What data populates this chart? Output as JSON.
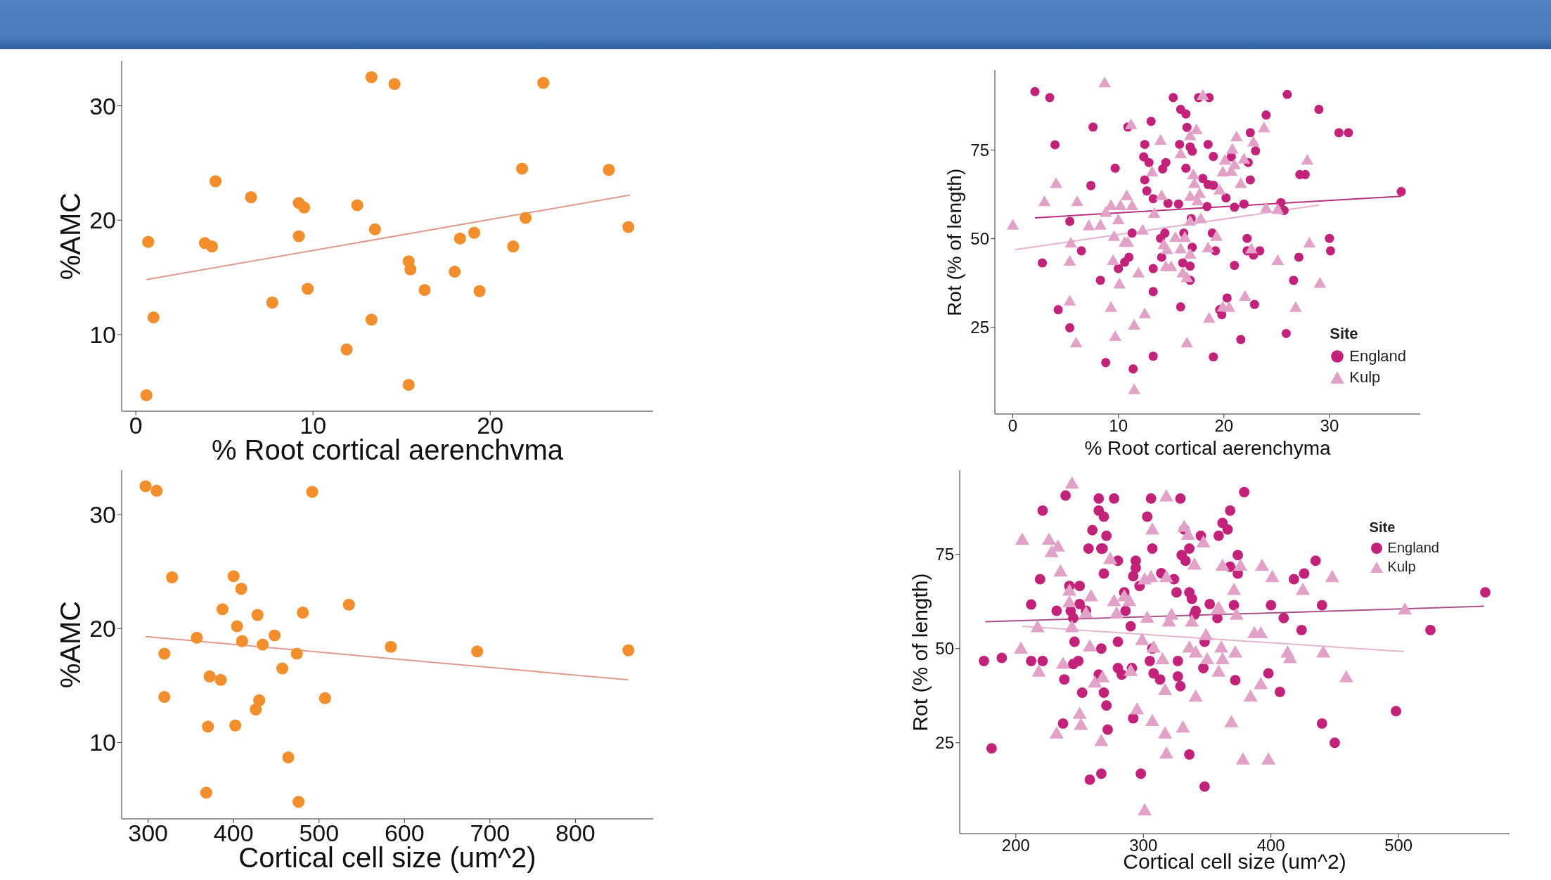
{
  "chart_data": [
    {
      "type": "scatter",
      "xlabel": "% Root cortical aerenchvma",
      "ylabel": "%AMC",
      "xlim": [
        -0.8,
        29.2
      ],
      "xticks": [
        0,
        10,
        20
      ],
      "ylim": [
        3.3,
        33.9
      ],
      "yticks": [
        10,
        20,
        30
      ],
      "series": [
        {
          "color": "#f28e2b",
          "marker": "circle",
          "x": [
            0.6,
            0.7,
            1.0,
            3.9,
            4.3,
            4.5,
            6.5,
            7.7,
            9.2,
            9.5,
            9.2,
            9.7,
            11.9,
            12.5,
            13.3,
            13.3,
            13.5,
            14.6,
            15.4,
            15.5,
            15.4,
            16.3,
            18.0,
            18.3,
            19.1,
            19.4,
            21.3,
            21.8,
            22.0,
            23.0,
            26.7,
            27.8
          ],
          "values": [
            4.7,
            18.1,
            11.5,
            18.0,
            17.7,
            23.4,
            22.0,
            12.8,
            21.5,
            21.1,
            18.6,
            14.0,
            8.7,
            21.3,
            32.5,
            11.3,
            19.2,
            31.9,
            16.4,
            15.7,
            5.6,
            13.9,
            15.5,
            18.4,
            18.9,
            13.8,
            17.7,
            24.5,
            20.2,
            32.0,
            24.4,
            19.4
          ]
        },
        {
          "type": "line",
          "color": "#df9a8c",
          "x": [
            0.6,
            27.9
          ],
          "values": [
            14.8,
            22.2
          ]
        }
      ]
    },
    {
      "type": "scatter",
      "xlabel": "% Root cortical aerenchyma",
      "ylabel": "Rot (% of length)",
      "legend_title": "Site",
      "legend": "bottom right",
      "xlim": [
        -1.7,
        38.6
      ],
      "xticks": [
        0,
        10,
        20,
        30
      ],
      "ylim": [
        0.6,
        97.5
      ],
      "yticks": [
        25,
        50,
        75
      ],
      "series": [
        {
          "name": "England",
          "color": "#c2227a",
          "marker": "circle",
          "x": [
            2.1,
            3.5,
            4.0,
            2.8,
            4.3,
            5.4,
            5.4,
            6.5,
            7.4,
            7.6,
            8.3,
            8.8,
            9.7,
            10.0,
            10.6,
            11.0,
            10.9,
            11.3,
            11.4,
            12.4,
            12.5,
            12.5,
            12.7,
            12.9,
            13.1,
            13.3,
            13.3,
            13.3,
            13.3,
            14.0,
            14.1,
            14.2,
            14.5,
            14.4,
            14.7,
            15.2,
            15.7,
            15.8,
            15.9,
            15.9,
            16.1,
            16.2,
            16.4,
            16.4,
            16.5,
            16.8,
            16.8,
            17.0,
            16.9,
            17.0,
            16.8,
            17.6,
            18.0,
            18.4,
            18.5,
            18.5,
            18.6,
            18.9,
            19.0,
            19.0,
            19.2,
            19.0,
            19.6,
            19.8,
            20.3,
            20.2,
            20.7,
            21.0,
            21.0,
            21.6,
            21.9,
            22.2,
            22.2,
            22.3,
            22.5,
            22.5,
            22.8,
            23.0,
            22.9,
            23.4,
            24.0,
            25.4,
            25.7,
            26.0,
            25.9,
            26.6,
            27.1,
            27.2,
            27.7,
            29.0,
            30.0,
            30.1,
            30.9,
            31.8,
            36.8
          ],
          "values": [
            91.5,
            89.8,
            76.5,
            43.2,
            30.0,
            24.9,
            54.9,
            46.6,
            65.0,
            81.5,
            38.3,
            15.1,
            69.9,
            41.6,
            43.4,
            44.8,
            81.5,
            51.6,
            13.3,
            73.1,
            76.6,
            66.6,
            63.5,
            71.5,
            83.1,
            61.3,
            35.1,
            16.9,
            41.6,
            50.1,
            44.8,
            69.7,
            71.5,
            51.6,
            60.0,
            89.8,
            59.8,
            76.6,
            86.5,
            30.8,
            43.2,
            51.6,
            85.2,
            69.9,
            81.4,
            42.3,
            75.9,
            74.7,
            55.7,
            47.6,
            38.3,
            89.8,
            67.0,
            59.1,
            76.6,
            65.3,
            89.8,
            51.6,
            65.1,
            73.2,
            46.6,
            16.7,
            30.0,
            28.6,
            33.3,
            61.5,
            73.1,
            58.9,
            42.5,
            21.6,
            59.8,
            46.6,
            50.1,
            71.5,
            66.6,
            79.9,
            45.4,
            74.8,
            31.5,
            46.6,
            84.9,
            60.2,
            58.0,
            90.7,
            23.3,
            38.3,
            44.8,
            68.1,
            68.1,
            86.5,
            50.1,
            46.6,
            79.9,
            79.9,
            63.3
          ]
        },
        {
          "name": "Kulp",
          "color": "#e2a2c8",
          "marker": "triangle",
          "x": [
            0.0,
            3.0,
            4.1,
            5.5,
            5.4,
            5.4,
            6.0,
            6.1,
            7.2,
            8.3,
            8.7,
            8.8,
            9.3,
            9.3,
            9.5,
            9.6,
            9.7,
            10.0,
            10.1,
            10.2,
            10.6,
            10.8,
            10.9,
            11.2,
            11.3,
            11.5,
            11.5,
            11.9,
            12.3,
            12.5,
            13.2,
            13.4,
            14.0,
            14.1,
            14.3,
            14.5,
            14.6,
            15.0,
            15.4,
            15.9,
            15.9,
            16.1,
            16.3,
            16.5,
            16.5,
            16.8,
            16.8,
            16.8,
            16.8,
            17.1,
            17.2,
            17.4,
            17.5,
            17.7,
            17.8,
            18.0,
            18.5,
            18.6,
            19.3,
            19.6,
            19.9,
            19.9,
            20.1,
            20.5,
            20.7,
            20.8,
            21.0,
            21.2,
            21.6,
            21.9,
            22.0,
            22.6,
            22.8,
            23.8,
            24.0,
            25.1,
            25.1,
            26.8,
            27.9,
            28.1,
            29.1
          ],
          "values": [
            53.6,
            60.2,
            65.3,
            48.5,
            43.4,
            32.2,
            20.4,
            60.2,
            53.4,
            53.6,
            93.7,
            57.2,
            59.1,
            30.4,
            43.6,
            50.4,
            22.2,
            55.1,
            37.0,
            59.1,
            48.7,
            61.9,
            48.7,
            81.9,
            59.1,
            25.4,
            7.2,
            40.1,
            52.2,
            28.6,
            68.6,
            56.9,
            77.5,
            61.9,
            48.1,
            41.9,
            46.7,
            41.9,
            50.1,
            73.7,
            46.9,
            40.1,
            50.1,
            38.8,
            20.4,
            78.8,
            54.7,
            61.7,
            45.4,
            67.8,
            65.3,
            80.5,
            60.4,
            62.5,
            55.4,
            90.2,
            47.2,
            27.3,
            50.4,
            63.5,
            68.6,
            30.5,
            71.9,
            30.4,
            68.8,
            75.0,
            70.6,
            78.5,
            65.3,
            72.2,
            33.5,
            46.9,
            77.0,
            81.0,
            58.4,
            58.0,
            43.6,
            30.4,
            71.9,
            48.5,
            37.2
          ]
        },
        {
          "type": "line",
          "color": "#b8307f",
          "x": [
            2.1,
            36.8
          ],
          "values": [
            55.9,
            62.0
          ]
        },
        {
          "type": "line",
          "color": "#e7b0cf",
          "x": [
            0.2,
            29.0
          ],
          "values": [
            46.9,
            59.5
          ]
        }
      ]
    },
    {
      "type": "scatter",
      "xlabel": "Cortical cell size (um^2)",
      "ylabel": "%AMC",
      "xlim": [
        269,
        891
      ],
      "xticks": [
        300,
        400,
        500,
        600,
        700,
        800
      ],
      "ylim": [
        3.3,
        33.9
      ],
      "yticks": [
        10,
        20,
        30
      ],
      "series": [
        {
          "color": "#f28e2b",
          "marker": "circle",
          "x": [
            297,
            310,
            328,
            319,
            319,
            357,
            372,
            385,
            370,
            368,
            387,
            400,
            409,
            404,
            410,
            402,
            428,
            434,
            448,
            430,
            426,
            457,
            464,
            474,
            476,
            481,
            492,
            507,
            535,
            584,
            685,
            862
          ],
          "values": [
            32.5,
            32.1,
            24.5,
            17.8,
            14.0,
            19.2,
            15.8,
            15.5,
            11.4,
            5.6,
            21.7,
            24.6,
            23.5,
            20.2,
            18.9,
            11.5,
            21.2,
            18.6,
            19.4,
            13.7,
            12.9,
            16.5,
            8.7,
            17.8,
            4.8,
            21.4,
            32.0,
            13.9,
            22.1,
            18.4,
            18.0,
            18.1
          ]
        },
        {
          "type": "line",
          "color": "#df9a8c",
          "x": [
            297,
            862
          ],
          "values": [
            19.3,
            15.5
          ]
        }
      ]
    },
    {
      "type": "scatter",
      "xlabel": "Cortical cell size (um^2)",
      "ylabel": "Rot (% of length)",
      "legend_title": "Site",
      "legend": "top right",
      "xlim": [
        156,
        587
      ],
      "xticks": [
        200,
        300,
        400,
        500
      ],
      "ylim": [
        0.9,
        97.3
      ],
      "yticks": [
        25,
        50,
        75
      ],
      "series": [
        {
          "name": "England",
          "color": "#c2227a",
          "marker": "circle",
          "x": [
            175,
            189,
            181,
            212,
            221,
            212,
            219,
            221,
            232,
            237,
            238,
            239,
            242,
            243,
            245,
            246,
            245,
            250,
            250,
            249,
            252,
            255,
            258,
            257,
            260,
            265,
            265,
            265,
            267,
            267,
            269,
            268,
            269,
            269,
            267,
            271,
            271,
            272,
            277,
            280,
            280,
            280,
            283,
            285,
            286,
            290,
            291,
            292,
            294,
            294,
            292,
            297,
            298,
            303,
            305,
            306,
            307,
            307,
            308,
            313,
            314,
            324,
            326,
            327,
            327,
            329,
            329,
            330,
            332,
            333,
            336,
            336,
            336,
            338,
            341,
            340,
            345,
            347,
            348,
            348,
            352,
            358,
            359,
            362,
            366,
            368,
            368,
            374,
            374,
            371,
            372,
            379,
            400,
            398,
            407,
            410,
            418,
            426,
            424,
            435,
            440,
            440,
            450,
            498,
            525,
            568
          ],
          "values": [
            46.7,
            47.5,
            23.5,
            46.7,
            46.7,
            61.7,
            68.4,
            86.6,
            60.0,
            30.1,
            41.8,
            90.6,
            66.6,
            60.0,
            58.1,
            51.8,
            45.9,
            66.6,
            61.8,
            46.7,
            38.3,
            60.0,
            15.2,
            76.5,
            81.4,
            89.8,
            86.6,
            43.1,
            50.0,
            76.5,
            85.0,
            76.5,
            69.9,
            38.3,
            16.8,
            79.9,
            34.9,
            28.5,
            89.8,
            73.3,
            51.8,
            44.8,
            43.1,
            64.9,
            60.0,
            55.9,
            44.8,
            69.2,
            73.3,
            71.4,
            31.5,
            66.6,
            16.8,
            85.0,
            46.7,
            89.8,
            76.5,
            50.0,
            43.4,
            41.8,
            70.0,
            68.4,
            64.9,
            46.7,
            42.6,
            40.0,
            89.8,
            74.8,
            81.6,
            73.3,
            76.5,
            21.9,
            64.9,
            63.2,
            60.0,
            59.0,
            79.9,
            44.8,
            51.8,
            13.4,
            61.8,
            58.1,
            79.9,
            83.3,
            81.6,
            86.6,
            71.7,
            74.8,
            69.9,
            61.5,
            41.6,
            91.5,
            61.5,
            43.4,
            38.5,
            58.1,
            68.4,
            69.9,
            54.9,
            73.3,
            61.5,
            30.1,
            25.0,
            33.4,
            54.9,
            64.9
          ]
        },
        {
          "name": "Kulp",
          "color": "#e2a2c8",
          "marker": "triangle",
          "x": [
            205,
            204,
            217,
            218,
            226,
            228,
            233,
            235,
            232,
            237,
            242,
            242,
            244,
            244,
            250,
            251,
            255,
            258,
            259,
            262,
            267,
            268,
            274,
            277,
            279,
            285,
            289,
            290,
            295,
            299,
            303,
            301,
            306,
            307,
            307,
            301,
            308,
            315,
            317,
            317,
            318,
            318,
            318,
            320,
            322,
            331,
            332,
            335,
            336,
            338,
            340,
            341,
            341,
            347,
            349,
            350,
            358,
            359,
            361,
            362,
            359,
            362,
            369,
            371,
            372,
            373,
            376,
            378,
            384,
            387,
            392,
            393,
            392,
            398,
            401,
            413,
            415,
            425,
            441,
            448,
            459,
            505
          ],
          "values": [
            78.6,
            49.7,
            55.4,
            43.6,
            78.6,
            75.3,
            76.8,
            70.2,
            27.2,
            45.7,
            65.1,
            62.0,
            55.4,
            93.5,
            32.4,
            29.5,
            59.2,
            50.3,
            63.6,
            40.7,
            25.2,
            42.1,
            73.5,
            62.3,
            59.1,
            63.6,
            62.3,
            43.8,
            33.6,
            52.0,
            57.9,
            68.1,
            68.7,
            81.3,
            30.5,
            6.8,
            50.0,
            46.9,
            38.7,
            27.2,
            90.1,
            21.9,
            68.7,
            56.9,
            58.7,
            28.8,
            82.0,
            79.9,
            50.0,
            56.9,
            72.0,
            48.7,
            37.0,
            77.9,
            53.3,
            46.9,
            60.1,
            60.5,
            50.0,
            46.9,
            43.6,
            71.7,
            30.2,
            65.3,
            48.7,
            58.7,
            71.7,
            20.3,
            37.0,
            53.8,
            53.8,
            71.7,
            40.3,
            20.3,
            68.7,
            48.7,
            47.2,
            65.3,
            48.7,
            68.7,
            42.1,
            60.1
          ]
        },
        {
          "type": "line",
          "color": "#a8508a",
          "x": [
            176,
            567
          ],
          "values": [
            57.1,
            61.2
          ]
        },
        {
          "type": "line",
          "color": "#e3b5cf",
          "x": [
            205,
            504
          ],
          "values": [
            55.9,
            49.2
          ]
        }
      ]
    }
  ]
}
